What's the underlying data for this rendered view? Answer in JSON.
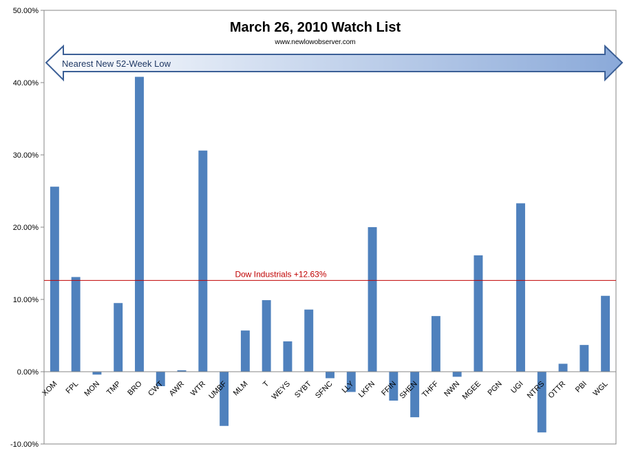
{
  "chart_data": {
    "type": "bar",
    "title": "March 26, 2010 Watch List",
    "subtitle": "www.newlowobserver.com",
    "annotation": "Nearest New 52-Week Low",
    "reference_line": {
      "label": "Dow Industrials +12.63%",
      "value": 12.63,
      "color": "#c00000"
    },
    "ylim": [
      -10,
      50
    ],
    "ytick_values": [
      -10,
      0,
      10,
      20,
      30,
      40,
      50
    ],
    "ytick_labels": [
      "-10.00%",
      "0.00%",
      "10.00%",
      "20.00%",
      "30.00%",
      "40.00%",
      "50.00%"
    ],
    "categories": [
      "XOM",
      "FPL",
      "MON",
      "TMP",
      "BRO",
      "CWT",
      "AWR",
      "WTR",
      "UMBF",
      "MLM",
      "T",
      "WEYS",
      "SYBT",
      "SFNC",
      "LLY",
      "LKFN",
      "FFIN",
      "SHEN",
      "THFF",
      "NWN",
      "MGEE",
      "PGN",
      "UGI",
      "NTRS",
      "OTTR",
      "PBI",
      "WGL"
    ],
    "values": [
      25.6,
      13.1,
      -0.4,
      9.5,
      40.8,
      -2.0,
      0.2,
      30.6,
      -7.5,
      5.7,
      9.9,
      4.2,
      8.6,
      -0.9,
      -2.8,
      20.0,
      -4.0,
      -6.3,
      7.7,
      -0.7,
      16.1,
      0.0,
      23.3,
      -8.4,
      1.1,
      3.7,
      10.5
    ],
    "bar_color": "#4f81bd",
    "grid": false,
    "legend": "none"
  }
}
